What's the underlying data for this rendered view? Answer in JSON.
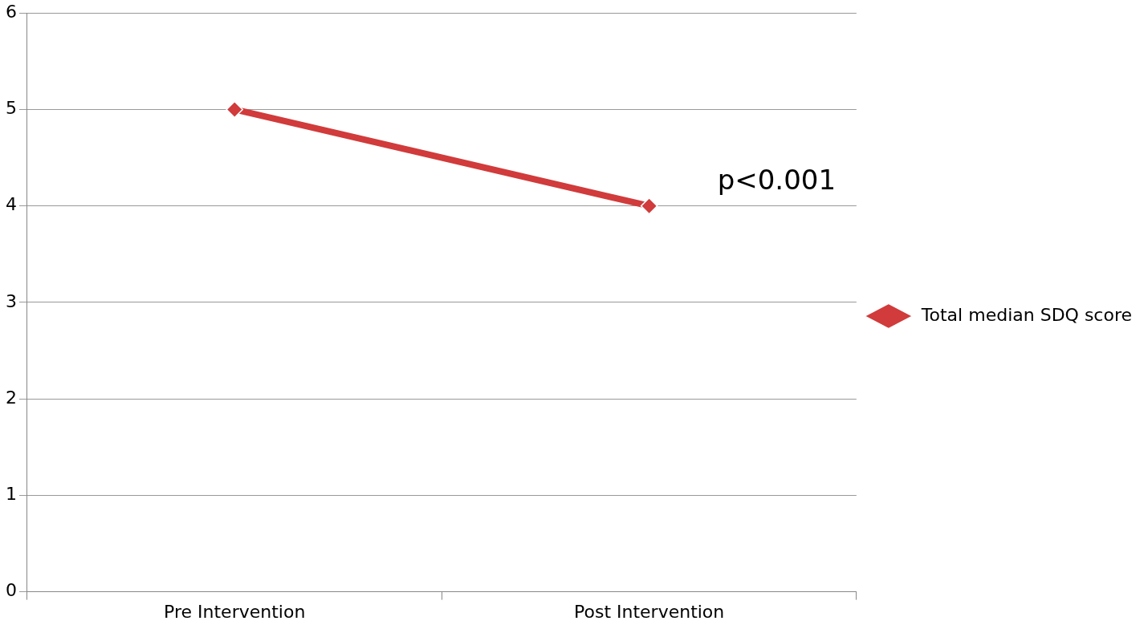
{
  "chart_data": {
    "type": "line",
    "categories": [
      "Pre Intervention",
      "Post Intervention"
    ],
    "series": [
      {
        "name": "Total median SDQ score",
        "color": "#d13b3b",
        "values": [
          5,
          4
        ]
      }
    ],
    "ylim": [
      0,
      6
    ],
    "yticks": [
      0,
      1,
      2,
      3,
      4,
      5,
      6
    ],
    "grid": "y",
    "legend": "right",
    "marker": "diamond",
    "line_style": "solid",
    "annotations": [
      {
        "text": "p<0.001",
        "x": "Post Intervention",
        "y": 4
      }
    ]
  }
}
